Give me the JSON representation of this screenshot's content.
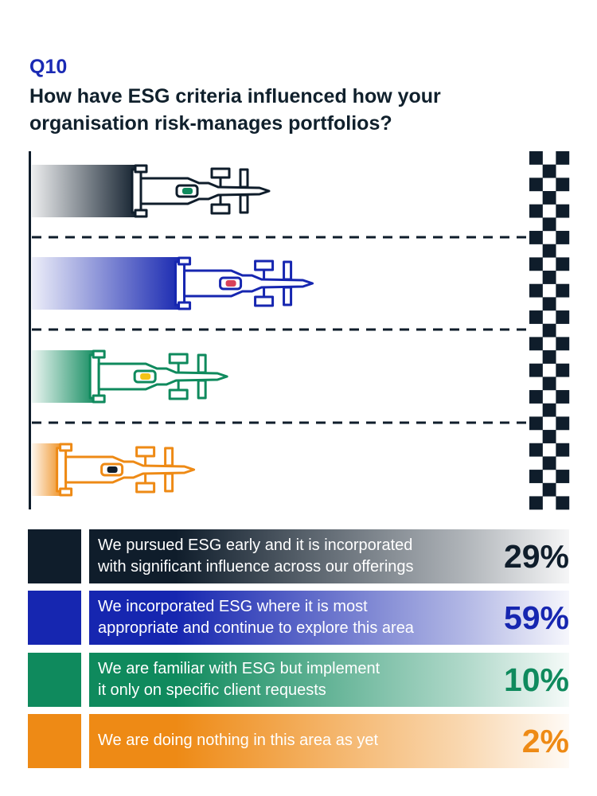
{
  "question_number": "Q10",
  "title": "How have ESG criteria influenced how your organisation risk-manages portfolios?",
  "colors": {
    "navy": "#0f1d2b",
    "blue": "#1626b0",
    "green": "#0f8a5d",
    "orange": "#ee8a15"
  },
  "chart_data": {
    "type": "bar",
    "categories": [
      "We pursued ESG early and it is incorporated with significant influence across our offerings",
      "We incorporated ESG where it is most appropriate and continue to explore this area",
      "We are familiar with ESG but implement it only on specific client requests",
      "We are doing nothing in this area as yet"
    ],
    "values": [
      29,
      59,
      10,
      2
    ],
    "value_labels": [
      "29%",
      "59%",
      "10%",
      "2%"
    ],
    "series_colors": [
      "#0f1d2b",
      "#1626b0",
      "#0f8a5d",
      "#ee8a15"
    ],
    "car_dot_colors": [
      "#0f8a5d",
      "#d8425a",
      "#f2c318",
      "#0f1d2b"
    ],
    "legend": [
      {
        "lines": [
          "We pursued ESG early and it is incorporated",
          "with significant influence across our offerings"
        ],
        "value": "29%"
      },
      {
        "lines": [
          "We incorporated ESG where it is most",
          "appropriate and continue to explore this area"
        ],
        "value": "59%"
      },
      {
        "lines": [
          "We are familiar with ESG but implement",
          "it only on specific client requests"
        ],
        "value": "10%"
      },
      {
        "lines": [
          "We are doing nothing in this area as yet"
        ],
        "value": "2%"
      }
    ]
  }
}
